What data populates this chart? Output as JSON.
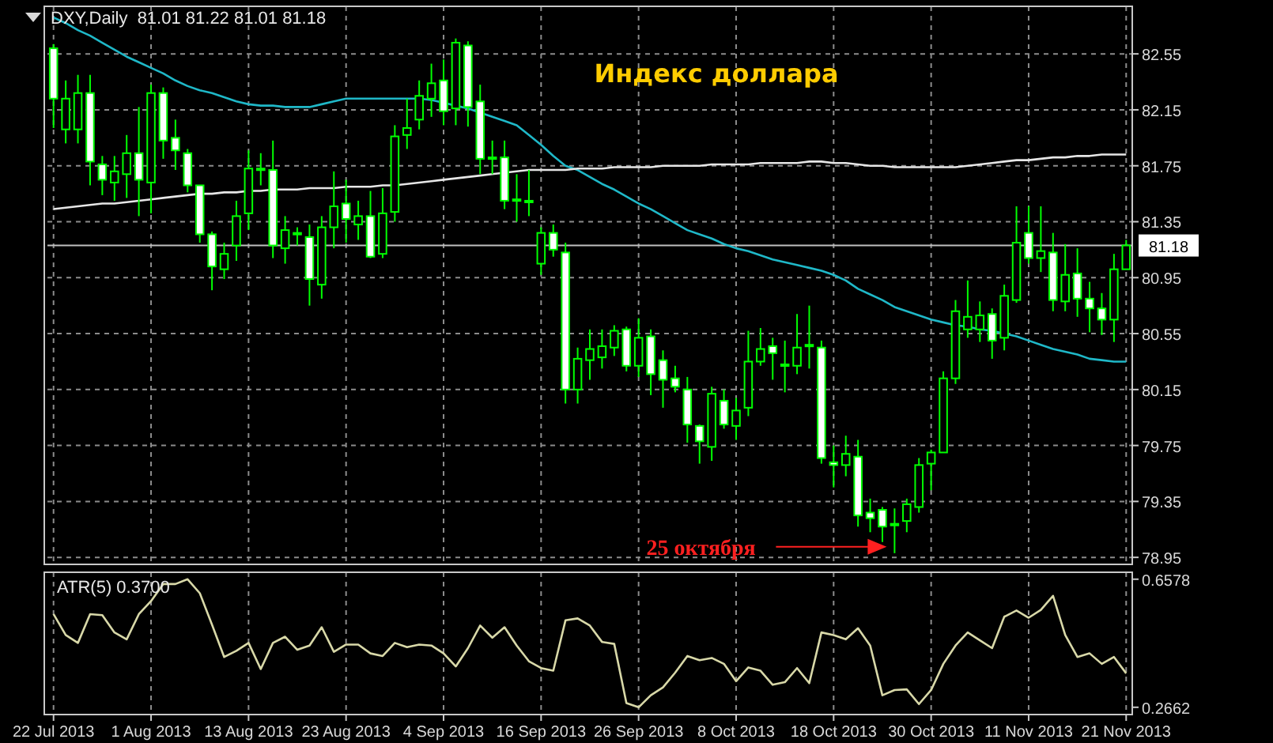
{
  "chart_data": [
    {
      "type": "candlestick",
      "title": "Индекс доллара",
      "subtitle": "DXY,Daily  81.01 81.22 81.01 81.18",
      "color": "#00ff00",
      "categories": [
        null,
        null,
        null,
        null,
        null,
        null,
        null,
        null,
        null,
        null,
        null,
        null,
        null,
        null,
        null,
        null,
        null,
        null,
        null,
        null,
        null,
        null,
        null,
        null,
        null,
        null,
        null,
        null,
        null,
        null,
        null,
        null,
        null,
        null,
        null,
        null,
        null,
        null,
        null,
        null,
        null,
        null,
        null,
        null,
        null,
        null,
        null,
        null,
        null,
        null,
        null,
        null,
        null,
        null,
        null,
        null,
        null,
        null,
        null,
        null,
        null,
        null,
        null,
        null,
        null,
        null,
        null,
        null,
        null,
        null,
        null,
        null,
        null,
        null,
        null,
        null,
        null,
        null,
        null,
        null,
        null,
        null,
        null,
        null,
        null,
        null,
        null,
        null,
        null
      ],
      "ohlc": [
        [
          82.59,
          82.62,
          82.02,
          82.23
        ],
        [
          82.01,
          82.36,
          81.91,
          82.23
        ],
        [
          82.01,
          82.4,
          81.91,
          82.27
        ],
        [
          82.27,
          82.4,
          81.61,
          81.78
        ],
        [
          81.76,
          81.82,
          81.54,
          81.65
        ],
        [
          81.63,
          81.82,
          81.5,
          81.71
        ],
        [
          81.69,
          81.97,
          81.52,
          81.84
        ],
        [
          81.84,
          82.17,
          81.39,
          81.65
        ],
        [
          81.63,
          82.33,
          81.41,
          82.27
        ],
        [
          82.27,
          82.31,
          81.8,
          81.93
        ],
        [
          81.95,
          82.08,
          81.72,
          81.86
        ],
        [
          81.84,
          81.87,
          81.56,
          81.61
        ],
        [
          81.61,
          81.61,
          81.2,
          81.26
        ],
        [
          81.26,
          81.28,
          80.86,
          81.03
        ],
        [
          81.01,
          81.2,
          80.94,
          81.12
        ],
        [
          81.18,
          81.5,
          81.07,
          81.39
        ],
        [
          81.41,
          81.86,
          81.29,
          81.73
        ],
        [
          81.72,
          81.84,
          81.61,
          81.73
        ],
        [
          81.72,
          81.93,
          81.09,
          81.18
        ],
        [
          81.16,
          81.39,
          81.05,
          81.29
        ],
        [
          81.26,
          81.31,
          81.18,
          81.27
        ],
        [
          81.24,
          81.33,
          80.75,
          80.94
        ],
        [
          80.9,
          81.39,
          80.8,
          81.31
        ],
        [
          81.31,
          81.71,
          81.16,
          81.46
        ],
        [
          81.48,
          81.65,
          81.2,
          81.37
        ],
        [
          81.33,
          81.5,
          81.22,
          81.39
        ],
        [
          81.39,
          81.57,
          81.09,
          81.1
        ],
        [
          81.12,
          81.59,
          81.09,
          81.41
        ],
        [
          81.42,
          82.04,
          81.35,
          81.96
        ],
        [
          81.97,
          82.23,
          81.87,
          82.02
        ],
        [
          82.08,
          82.36,
          82.01,
          82.25
        ],
        [
          82.23,
          82.48,
          82.1,
          82.34
        ],
        [
          82.36,
          82.51,
          82.04,
          82.14
        ],
        [
          82.16,
          82.66,
          82.04,
          82.63
        ],
        [
          82.61,
          82.64,
          82.03,
          82.17
        ],
        [
          82.21,
          82.33,
          81.69,
          81.8
        ],
        [
          81.8,
          81.93,
          81.69,
          81.81
        ],
        [
          81.81,
          81.93,
          81.44,
          81.5
        ],
        [
          81.51,
          81.69,
          81.35,
          81.5
        ],
        [
          81.5,
          81.72,
          81.39,
          81.49
        ],
        [
          81.05,
          81.31,
          80.97,
          81.27
        ],
        [
          81.27,
          81.33,
          81.1,
          81.15
        ],
        [
          81.13,
          81.2,
          80.05,
          80.15
        ],
        [
          80.15,
          80.45,
          80.05,
          80.37
        ],
        [
          80.36,
          80.58,
          80.22,
          80.44
        ],
        [
          80.38,
          80.58,
          80.3,
          80.46
        ],
        [
          80.45,
          80.61,
          80.39,
          80.57
        ],
        [
          80.58,
          80.6,
          80.28,
          80.32
        ],
        [
          80.32,
          80.66,
          80.24,
          80.52
        ],
        [
          80.53,
          80.58,
          80.11,
          80.26
        ],
        [
          80.36,
          80.43,
          80.02,
          80.22
        ],
        [
          80.23,
          80.32,
          80.13,
          80.17
        ],
        [
          80.15,
          80.24,
          79.77,
          79.9
        ],
        [
          79.89,
          79.9,
          79.62,
          79.78
        ],
        [
          79.74,
          80.17,
          79.64,
          80.12
        ],
        [
          80.07,
          80.15,
          79.87,
          79.9
        ],
        [
          79.89,
          80.09,
          79.79,
          80.0
        ],
        [
          80.02,
          80.57,
          79.96,
          80.35
        ],
        [
          80.35,
          80.59,
          80.32,
          80.44
        ],
        [
          80.46,
          80.52,
          80.22,
          80.41
        ],
        [
          80.33,
          80.5,
          80.13,
          80.32
        ],
        [
          80.32,
          80.69,
          80.26,
          80.45
        ],
        [
          80.46,
          80.75,
          80.3,
          80.47
        ],
        [
          80.45,
          80.5,
          79.62,
          79.66
        ],
        [
          79.63,
          79.75,
          79.45,
          79.61
        ],
        [
          79.61,
          79.82,
          79.53,
          79.69
        ],
        [
          79.67,
          79.79,
          79.17,
          79.25
        ],
        [
          79.27,
          79.37,
          79.13,
          79.23
        ],
        [
          79.29,
          79.31,
          79.06,
          79.17
        ],
        [
          79.19,
          79.3,
          78.98,
          79.18
        ],
        [
          79.21,
          79.37,
          79.13,
          79.33
        ],
        [
          79.31,
          79.66,
          79.27,
          79.61
        ],
        [
          79.62,
          79.72,
          79.43,
          79.7
        ],
        [
          79.7,
          80.28,
          79.7,
          80.23
        ],
        [
          80.23,
          80.79,
          80.19,
          80.71
        ],
        [
          80.58,
          80.93,
          80.52,
          80.67
        ],
        [
          80.58,
          80.78,
          80.49,
          80.68
        ],
        [
          80.69,
          80.73,
          80.37,
          80.5
        ],
        [
          80.52,
          80.9,
          80.43,
          80.82
        ],
        [
          80.79,
          81.46,
          80.77,
          81.2
        ],
        [
          81.27,
          81.46,
          81.05,
          81.09
        ],
        [
          81.09,
          81.46,
          80.99,
          81.14
        ],
        [
          81.13,
          81.27,
          80.71,
          80.79
        ],
        [
          80.78,
          81.19,
          80.71,
          80.97
        ],
        [
          80.98,
          81.16,
          80.67,
          80.8
        ],
        [
          80.8,
          80.92,
          80.56,
          80.73
        ],
        [
          80.73,
          80.84,
          80.54,
          80.65
        ],
        [
          80.65,
          81.12,
          80.49,
          81.01
        ],
        [
          81.01,
          81.22,
          81.01,
          81.18
        ]
      ],
      "series": [
        {
          "type": "line",
          "color": "#1fb8c8",
          "values": [
            82.81,
            82.77,
            82.72,
            82.68,
            82.63,
            82.58,
            82.53,
            82.49,
            82.45,
            82.41,
            82.36,
            82.32,
            82.29,
            82.27,
            82.24,
            82.21,
            82.19,
            82.18,
            82.18,
            82.17,
            82.17,
            82.17,
            82.19,
            82.21,
            82.23,
            82.23,
            82.23,
            82.23,
            82.23,
            82.23,
            82.23,
            82.22,
            82.2,
            82.18,
            82.16,
            82.13,
            82.1,
            82.07,
            82.04,
            81.97,
            81.9,
            81.82,
            81.75,
            81.72,
            81.67,
            81.62,
            81.58,
            81.53,
            81.48,
            81.44,
            81.39,
            81.34,
            81.29,
            81.26,
            81.23,
            81.19,
            81.16,
            81.14,
            81.11,
            81.08,
            81.06,
            81.04,
            81.02,
            81.0,
            80.97,
            80.93,
            80.87,
            80.83,
            80.79,
            80.74,
            80.71,
            80.68,
            80.65,
            80.63,
            80.61,
            80.6,
            80.58,
            80.57,
            80.55,
            80.53,
            80.5,
            80.47,
            80.44,
            80.42,
            80.4,
            80.37,
            80.36,
            80.35,
            80.35
          ]
        },
        {
          "type": "line",
          "color": "#e6e6e6",
          "values": [
            81.44,
            81.45,
            81.46,
            81.47,
            81.48,
            81.48,
            81.49,
            81.5,
            81.51,
            81.52,
            81.53,
            81.54,
            81.55,
            81.55,
            81.56,
            81.56,
            81.57,
            81.57,
            81.58,
            81.58,
            81.58,
            81.59,
            81.59,
            81.59,
            81.6,
            81.6,
            81.6,
            81.61,
            81.61,
            81.62,
            81.63,
            81.64,
            81.65,
            81.66,
            81.67,
            81.68,
            81.69,
            81.7,
            81.71,
            81.72,
            81.72,
            81.72,
            81.72,
            81.73,
            81.73,
            81.73,
            81.74,
            81.74,
            81.74,
            81.74,
            81.75,
            81.75,
            81.75,
            81.75,
            81.76,
            81.76,
            81.76,
            81.76,
            81.77,
            81.77,
            81.77,
            81.77,
            81.78,
            81.78,
            81.77,
            81.77,
            81.76,
            81.75,
            81.75,
            81.74,
            81.74,
            81.74,
            81.74,
            81.74,
            81.74,
            81.75,
            81.76,
            81.77,
            81.78,
            81.79,
            81.79,
            81.8,
            81.81,
            81.81,
            81.82,
            81.82,
            81.83,
            81.83,
            81.83
          ]
        }
      ],
      "ylim": [
        78.9,
        82.89
      ],
      "yticks": [
        78.95,
        79.35,
        79.75,
        80.15,
        80.55,
        80.95,
        81.35,
        81.75,
        82.15,
        82.55
      ],
      "ref_lines": [
        {
          "axis": "y",
          "value": 81.18,
          "label": "81.18",
          "color": "#c0c0c0"
        }
      ],
      "annotations": [
        "25 октября"
      ],
      "grid": true,
      "tick_labels": "y"
    },
    {
      "type": "line",
      "title": "ATR(5) 0.3700",
      "categories": [
        "22 Jul 2013",
        null,
        null,
        null,
        null,
        null,
        null,
        null,
        "1 Aug 2013",
        null,
        null,
        null,
        null,
        null,
        null,
        null,
        "13 Aug 2013",
        null,
        null,
        null,
        null,
        null,
        null,
        null,
        "23 Aug 2013",
        null,
        null,
        null,
        null,
        null,
        null,
        null,
        "4 Sep 2013",
        null,
        null,
        null,
        null,
        null,
        null,
        null,
        "16 Sep 2013",
        null,
        null,
        null,
        null,
        null,
        null,
        null,
        "26 Sep 2013",
        null,
        null,
        null,
        null,
        null,
        null,
        null,
        "8 Oct 2013",
        null,
        null,
        null,
        null,
        null,
        null,
        null,
        "18 Oct 2013",
        null,
        null,
        null,
        null,
        null,
        null,
        null,
        "30 Oct 2013",
        null,
        null,
        null,
        null,
        null,
        null,
        null,
        "11 Nov 2013",
        null,
        null,
        null,
        null,
        null,
        null,
        null,
        "21 Nov 2013"
      ],
      "series": [
        {
          "color": "#d8d8a8",
          "values": [
            0.551,
            0.487,
            0.463,
            0.551,
            0.548,
            0.495,
            0.474,
            0.551,
            0.591,
            0.643,
            0.643,
            0.6578,
            0.615,
            0.519,
            0.42,
            0.439,
            0.463,
            0.383,
            0.463,
            0.482,
            0.442,
            0.455,
            0.511,
            0.436,
            0.458,
            0.458,
            0.431,
            0.423,
            0.463,
            0.45,
            0.458,
            0.455,
            0.431,
            0.391,
            0.447,
            0.516,
            0.479,
            0.511,
            0.455,
            0.407,
            0.386,
            0.378,
            0.532,
            0.538,
            0.516,
            0.466,
            0.46,
            0.279,
            0.2662,
            0.303,
            0.327,
            0.372,
            0.423,
            0.41,
            0.417,
            0.399,
            0.346,
            0.388,
            0.378,
            0.335,
            0.343,
            0.386,
            0.34,
            0.495,
            0.487,
            0.474,
            0.508,
            0.455,
            0.303,
            0.319,
            0.321,
            0.276,
            0.319,
            0.399,
            0.455,
            0.495,
            0.471,
            0.447,
            0.543,
            0.562,
            0.54,
            0.564,
            0.607,
            0.487,
            0.42,
            0.431,
            0.399,
            0.42,
            0.37
          ]
        }
      ],
      "ylim": [
        0.244,
        0.679
      ],
      "yticks": [
        0.2662,
        0.6578
      ],
      "grid": "x"
    }
  ]
}
